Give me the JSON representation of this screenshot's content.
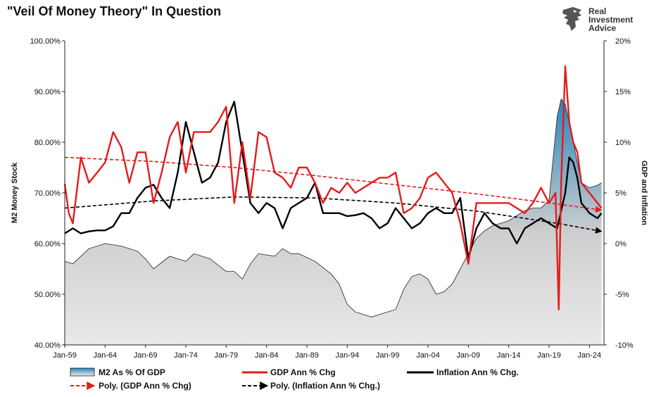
{
  "header": {
    "title": "\"Veil Of Money Theory\" In Question",
    "brand_lines": [
      "Real",
      "Investment",
      "Advice"
    ]
  },
  "colors": {
    "gdp": "#e31c1c",
    "inflation": "#000000",
    "m2_fill_top": "#2c84b8",
    "m2_fill_bottom": "#e9e9e9",
    "m2_line": "#222222",
    "logo": "#555555"
  },
  "chart_data": {
    "type": "line",
    "title": "\"Veil Of Money Theory\" In Question",
    "ylabel": "M2 Money Stock",
    "y2label": "GDP and Inflation",
    "ylim": [
      0.4,
      1.0
    ],
    "y2lim": [
      -10,
      20
    ],
    "xlim": [
      1959,
      2025.8
    ],
    "yticks": [
      "40.00%",
      "50.00%",
      "60.00%",
      "70.00%",
      "80.00%",
      "90.00%",
      "100.00%"
    ],
    "y2ticks": [
      "-10%",
      "-5%",
      "0%",
      "5%",
      "10%",
      "15%",
      "20%"
    ],
    "xticks": [
      "Jan-59",
      "Jan-64",
      "Jan-69",
      "Jan-74",
      "Jan-79",
      "Jan-84",
      "Jan-89",
      "Jan-94",
      "Jan-99",
      "Jan-04",
      "Jan-09",
      "Jan-14",
      "Jan-19",
      "Jan-24"
    ],
    "grid": false,
    "legend_position": "bottom",
    "legend": [
      {
        "name": "M2 As % Of GDP",
        "kind": "area"
      },
      {
        "name": "GDP Ann % Chg",
        "kind": "line",
        "color": "#e31c1c"
      },
      {
        "name": "Inflation Ann % Chg.",
        "kind": "line",
        "color": "#000000"
      },
      {
        "name": "Poly. (GDP Ann % Chg)",
        "kind": "dashed-arrow",
        "color": "#e31c1c"
      },
      {
        "name": "Poly. (Inflation Ann % Chg.)",
        "kind": "dashed-arrow",
        "color": "#000000"
      }
    ],
    "series": [
      {
        "name": "M2 As % Of GDP",
        "axis": "left",
        "x": [
          1959,
          1960,
          1962,
          1964,
          1966,
          1968,
          1969,
          1970,
          1972,
          1974,
          1975,
          1977,
          1979,
          1980,
          1981,
          1982,
          1983,
          1985,
          1986,
          1987,
          1988,
          1990,
          1992,
          1993,
          1994,
          1995,
          1996,
          1997,
          1998,
          1999,
          2000,
          2001,
          2002,
          2003,
          2004,
          2005,
          2006,
          2007,
          2008,
          2009,
          2010,
          2011,
          2012,
          2013,
          2014,
          2015,
          2016,
          2017,
          2018,
          2019,
          2020,
          2020.5,
          2021,
          2022,
          2023,
          2024,
          2025,
          2025.5
        ],
        "y": [
          0.565,
          0.56,
          0.59,
          0.6,
          0.595,
          0.585,
          0.57,
          0.55,
          0.575,
          0.565,
          0.58,
          0.57,
          0.545,
          0.545,
          0.53,
          0.56,
          0.58,
          0.575,
          0.59,
          0.58,
          0.58,
          0.565,
          0.54,
          0.52,
          0.48,
          0.465,
          0.46,
          0.455,
          0.46,
          0.465,
          0.47,
          0.51,
          0.535,
          0.54,
          0.53,
          0.5,
          0.505,
          0.52,
          0.55,
          0.58,
          0.61,
          0.625,
          0.635,
          0.64,
          0.645,
          0.655,
          0.665,
          0.67,
          0.67,
          0.685,
          0.85,
          0.885,
          0.875,
          0.8,
          0.72,
          0.71,
          0.715,
          0.72
        ]
      },
      {
        "name": "GDP Ann % Chg",
        "axis": "right",
        "x": [
          1959,
          1959.5,
          1960,
          1961,
          1962,
          1963,
          1964,
          1965,
          1966,
          1967,
          1968,
          1969,
          1970,
          1971,
          1972,
          1973,
          1974,
          1975,
          1976,
          1977,
          1978,
          1979,
          1980,
          1981,
          1982,
          1983,
          1984,
          1985,
          1986,
          1987,
          1988,
          1989,
          1990,
          1991,
          1992,
          1993,
          1994,
          1995,
          1996,
          1997,
          1998,
          1999,
          2000,
          2001,
          2002,
          2003,
          2004,
          2005,
          2006,
          2007,
          2008,
          2009,
          2010,
          2011,
          2012,
          2013,
          2014,
          2015,
          2016,
          2017,
          2018,
          2019,
          2019.8,
          2020.2,
          2020.5,
          2021,
          2021.5,
          2022,
          2022.5,
          2023,
          2024,
          2025,
          2025.5
        ],
        "y": [
          5.9,
          3,
          2,
          8.5,
          6,
          7,
          8,
          11,
          9.5,
          6,
          9,
          9,
          4,
          7,
          10.5,
          12,
          7,
          11,
          11,
          11,
          12,
          13.5,
          4,
          10,
          4.5,
          11,
          10.5,
          7,
          6.5,
          5.5,
          7.5,
          7.5,
          6,
          4,
          5.5,
          5,
          6,
          5,
          5.5,
          6,
          6.5,
          6.5,
          7,
          3,
          3.5,
          4.5,
          6.5,
          7,
          6,
          5,
          2,
          -2,
          4,
          4,
          4,
          4,
          4,
          3.5,
          3,
          4,
          5.5,
          4,
          5,
          -6.5,
          6,
          17.5,
          12,
          10,
          9,
          6,
          5,
          4,
          3.5
        ]
      },
      {
        "name": "Inflation Ann % Chg.",
        "axis": "right",
        "x": [
          1959,
          1960,
          1961,
          1962,
          1963,
          1964,
          1965,
          1966,
          1967,
          1968,
          1969,
          1970,
          1971,
          1972,
          1973,
          1974,
          1975,
          1976,
          1977,
          1978,
          1979,
          1980,
          1981,
          1982,
          1983,
          1984,
          1985,
          1986,
          1987,
          1988,
          1989,
          1990,
          1991,
          1992,
          1993,
          1994,
          1995,
          1996,
          1997,
          1998,
          1999,
          2000,
          2001,
          2002,
          2003,
          2004,
          2005,
          2006,
          2007,
          2008,
          2009,
          2010,
          2011,
          2012,
          2013,
          2014,
          2015,
          2016,
          2017,
          2018,
          2019,
          2020,
          2021,
          2021.5,
          2022,
          2022.5,
          2023,
          2024,
          2025,
          2025.5
        ],
        "y": [
          1,
          1.5,
          1,
          1.2,
          1.3,
          1.3,
          1.7,
          3,
          3,
          4.5,
          5.5,
          5.8,
          4.5,
          3.5,
          7,
          12,
          9,
          6,
          6.5,
          8,
          12,
          14,
          9,
          4,
          3,
          4,
          3.5,
          1.5,
          3.5,
          4,
          4.5,
          6,
          3,
          3,
          3,
          2.7,
          2.8,
          3,
          2.5,
          1.5,
          2,
          3.5,
          2.5,
          1.5,
          2,
          3,
          3.5,
          3,
          3,
          4.5,
          -1.5,
          1.5,
          3,
          2,
          1.5,
          1.5,
          0,
          1.5,
          2,
          2.5,
          2,
          1.5,
          5,
          8.5,
          8,
          6.5,
          4,
          3,
          2.5,
          3
        ]
      },
      {
        "name": "Poly. (GDP Ann % Chg)",
        "axis": "right",
        "x": [
          1959,
          1970,
          1980,
          1990,
          2000,
          2010,
          2020,
          2025.5
        ],
        "y": [
          8.5,
          8.1,
          7.5,
          6.7,
          5.8,
          4.9,
          3.9,
          3.3
        ]
      },
      {
        "name": "Poly. (Inflation Ann % Chg.)",
        "axis": "right",
        "x": [
          1959,
          1970,
          1980,
          1990,
          2000,
          2010,
          2020,
          2025.5
        ],
        "y": [
          3.5,
          4.2,
          4.6,
          4.5,
          4.0,
          3.2,
          2.0,
          1.2
        ]
      }
    ]
  }
}
